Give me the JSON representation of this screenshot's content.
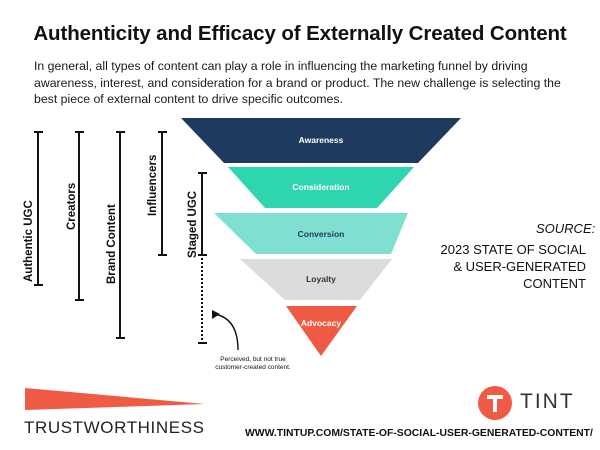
{
  "title": "Authenticity and Efficacy of Externally Created Content",
  "intro": "In general, all types of content can play a role in influencing the marketing funnel by driving awareness, interest, and consideration for a brand or product. The new challenge is selecting the best piece of external content to drive specific outcomes.",
  "content_types": [
    {
      "label": "Authentic UGC",
      "style": "solid"
    },
    {
      "label": "Creators",
      "style": "solid"
    },
    {
      "label": "Brand Content",
      "style": "solid"
    },
    {
      "label": "Influencers",
      "style": "solid"
    },
    {
      "label": "Staged UGC",
      "style": "solid-then-dotted"
    }
  ],
  "funnel": {
    "stages": [
      {
        "label": "Awareness",
        "color": "#1f3a5f"
      },
      {
        "label": "Consideration",
        "color": "#2ed6b0"
      },
      {
        "label": "Conversion",
        "color": "#7fe0d2"
      },
      {
        "label": "Loyalty",
        "color": "#dcdcdc"
      },
      {
        "label": "Advocacy",
        "color": "#ef5a45"
      }
    ]
  },
  "note": "Perceived, but not true customer-created content.",
  "source": {
    "heading": "SOURCE:",
    "line1": "2023 STATE OF SOCIAL",
    "line2": "& USER-GENERATED",
    "line3": "CONTENT"
  },
  "trustworthiness": {
    "label": "TRUSTWORTHINESS",
    "color": "#ef5a45"
  },
  "brand": {
    "name": "TINT",
    "color": "#ef5a45",
    "icon": "tint-logo-icon"
  },
  "url": "WWW.TINTUP.COM/STATE-OF-SOCIAL-USER-GENERATED-CONTENT/"
}
